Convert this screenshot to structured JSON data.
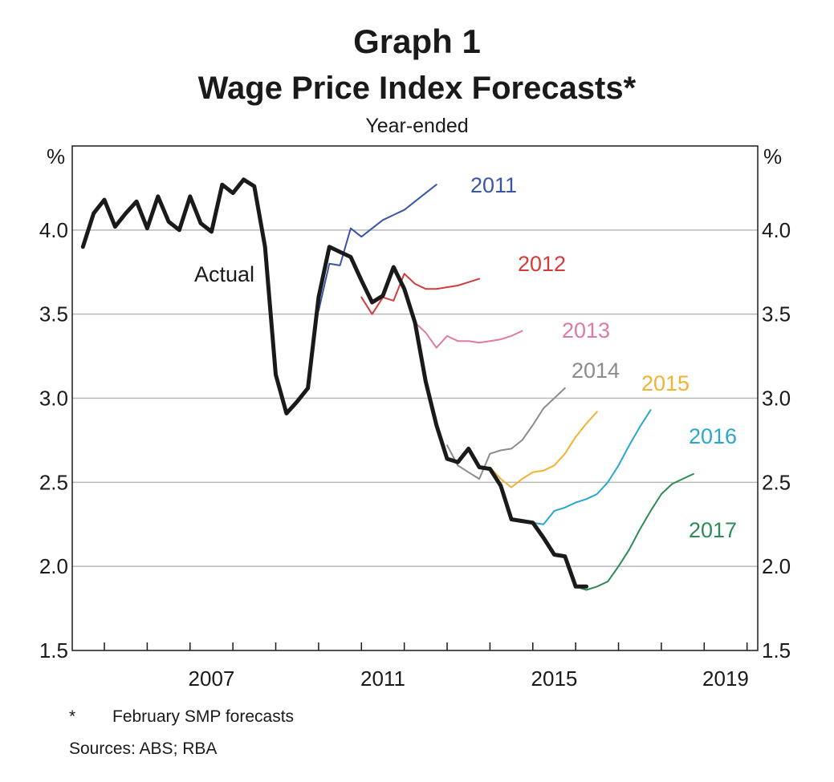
{
  "chart_data": {
    "type": "line",
    "title": "Graph 1",
    "subtitle": "Wage Price Index Forecasts*",
    "subsubtitle": "Year-ended",
    "ylabel_left": "%",
    "ylabel_right": "%",
    "ylim": [
      1.5,
      4.5
    ],
    "xlim": [
      2004.25,
      2020.25
    ],
    "y_ticks": [
      "4.0",
      "3.5",
      "3.0",
      "2.5",
      "2.0",
      "1.5"
    ],
    "x_tick_labels": [
      "2007",
      "2011",
      "2015",
      "2019"
    ],
    "grid": true,
    "series": [
      {
        "name": "Actual",
        "color": "#1a1a1a",
        "points": [
          [
            2004.5,
            3.9
          ],
          [
            2004.75,
            4.1
          ],
          [
            2005.0,
            4.18
          ],
          [
            2005.25,
            4.02
          ],
          [
            2005.5,
            4.1
          ],
          [
            2005.75,
            4.17
          ],
          [
            2006.0,
            4.01
          ],
          [
            2006.25,
            4.2
          ],
          [
            2006.5,
            4.05
          ],
          [
            2006.75,
            4.0
          ],
          [
            2007.0,
            4.2
          ],
          [
            2007.25,
            4.04
          ],
          [
            2007.5,
            3.99
          ],
          [
            2007.75,
            4.27
          ],
          [
            2008.0,
            4.22
          ],
          [
            2008.25,
            4.3
          ],
          [
            2008.5,
            4.26
          ],
          [
            2008.75,
            3.9
          ],
          [
            2009.0,
            3.14
          ],
          [
            2009.25,
            2.91
          ],
          [
            2009.5,
            2.98
          ],
          [
            2009.75,
            3.06
          ],
          [
            2010.0,
            3.6
          ],
          [
            2010.25,
            3.9
          ],
          [
            2010.5,
            3.87
          ],
          [
            2010.75,
            3.84
          ],
          [
            2011.0,
            3.7
          ],
          [
            2011.25,
            3.57
          ],
          [
            2011.5,
            3.61
          ],
          [
            2011.75,
            3.78
          ],
          [
            2012.0,
            3.65
          ],
          [
            2012.25,
            3.45
          ],
          [
            2012.5,
            3.1
          ],
          [
            2012.75,
            2.84
          ],
          [
            2013.0,
            2.64
          ],
          [
            2013.25,
            2.62
          ],
          [
            2013.5,
            2.7
          ],
          [
            2013.75,
            2.59
          ],
          [
            2014.0,
            2.58
          ],
          [
            2014.25,
            2.48
          ],
          [
            2014.5,
            2.28
          ],
          [
            2014.75,
            2.27
          ],
          [
            2015.0,
            2.26
          ],
          [
            2015.25,
            2.17
          ],
          [
            2015.5,
            2.07
          ],
          [
            2015.75,
            2.06
          ],
          [
            2016.0,
            1.88
          ],
          [
            2016.25,
            1.88
          ]
        ]
      },
      {
        "name": "2011",
        "color": "#3a55a3",
        "points": [
          [
            2010.0,
            3.52
          ],
          [
            2010.25,
            3.8
          ],
          [
            2010.5,
            3.79
          ],
          [
            2010.75,
            4.01
          ],
          [
            2011.0,
            3.96
          ],
          [
            2011.25,
            4.01
          ],
          [
            2011.5,
            4.06
          ],
          [
            2011.75,
            4.09
          ],
          [
            2012.0,
            4.12
          ],
          [
            2012.25,
            4.17
          ],
          [
            2012.5,
            4.22
          ],
          [
            2012.75,
            4.27
          ]
        ]
      },
      {
        "name": "2012",
        "color": "#d43c3c",
        "points": [
          [
            2011.0,
            3.6
          ],
          [
            2011.25,
            3.5
          ],
          [
            2011.5,
            3.6
          ],
          [
            2011.75,
            3.58
          ],
          [
            2012.0,
            3.74
          ],
          [
            2012.25,
            3.68
          ],
          [
            2012.5,
            3.65
          ],
          [
            2012.75,
            3.65
          ],
          [
            2013.0,
            3.66
          ],
          [
            2013.25,
            3.67
          ],
          [
            2013.5,
            3.69
          ],
          [
            2013.75,
            3.71
          ]
        ]
      },
      {
        "name": "2013",
        "color": "#e07aa3",
        "points": [
          [
            2012.0,
            3.65
          ],
          [
            2012.25,
            3.45
          ],
          [
            2012.5,
            3.39
          ],
          [
            2012.75,
            3.3
          ],
          [
            2013.0,
            3.37
          ],
          [
            2013.25,
            3.34
          ],
          [
            2013.5,
            3.34
          ],
          [
            2013.75,
            3.33
          ],
          [
            2014.0,
            3.34
          ],
          [
            2014.25,
            3.35
          ],
          [
            2014.5,
            3.37
          ],
          [
            2014.75,
            3.4
          ]
        ]
      },
      {
        "name": "2014",
        "color": "#8c8c8c",
        "points": [
          [
            2013.0,
            2.72
          ],
          [
            2013.25,
            2.6
          ],
          [
            2013.5,
            2.56
          ],
          [
            2013.75,
            2.52
          ],
          [
            2014.0,
            2.67
          ],
          [
            2014.25,
            2.69
          ],
          [
            2014.5,
            2.7
          ],
          [
            2014.75,
            2.75
          ],
          [
            2015.0,
            2.84
          ],
          [
            2015.25,
            2.94
          ],
          [
            2015.5,
            3.0
          ],
          [
            2015.75,
            3.06
          ]
        ]
      },
      {
        "name": "2015",
        "color": "#f2b233",
        "points": [
          [
            2014.0,
            2.59
          ],
          [
            2014.25,
            2.52
          ],
          [
            2014.5,
            2.47
          ],
          [
            2014.75,
            2.52
          ],
          [
            2015.0,
            2.56
          ],
          [
            2015.25,
            2.57
          ],
          [
            2015.5,
            2.6
          ],
          [
            2015.75,
            2.67
          ],
          [
            2016.0,
            2.77
          ],
          [
            2016.25,
            2.85
          ],
          [
            2016.5,
            2.92
          ]
        ]
      },
      {
        "name": "2016",
        "color": "#2aa7cf",
        "points": [
          [
            2015.0,
            2.26
          ],
          [
            2015.25,
            2.25
          ],
          [
            2015.5,
            2.33
          ],
          [
            2015.75,
            2.35
          ],
          [
            2016.0,
            2.38
          ],
          [
            2016.25,
            2.4
          ],
          [
            2016.5,
            2.43
          ],
          [
            2016.75,
            2.5
          ],
          [
            2017.0,
            2.6
          ],
          [
            2017.25,
            2.72
          ],
          [
            2017.5,
            2.83
          ],
          [
            2017.75,
            2.93
          ]
        ]
      },
      {
        "name": "2017",
        "color": "#2e8b57",
        "points": [
          [
            2016.0,
            1.88
          ],
          [
            2016.25,
            1.86
          ],
          [
            2016.5,
            1.88
          ],
          [
            2016.75,
            1.91
          ],
          [
            2017.0,
            2.0
          ],
          [
            2017.25,
            2.1
          ],
          [
            2017.5,
            2.22
          ],
          [
            2017.75,
            2.33
          ],
          [
            2018.0,
            2.43
          ],
          [
            2018.25,
            2.49
          ],
          [
            2018.5,
            2.52
          ],
          [
            2018.75,
            2.55
          ]
        ]
      }
    ],
    "annotations": [
      "Actual",
      "2011",
      "2012",
      "2013",
      "2014",
      "2015",
      "2016",
      "2017"
    ]
  },
  "footnote": {
    "star": "*",
    "text": "February SMP forecasts",
    "sources": "Sources: ABS; RBA"
  }
}
